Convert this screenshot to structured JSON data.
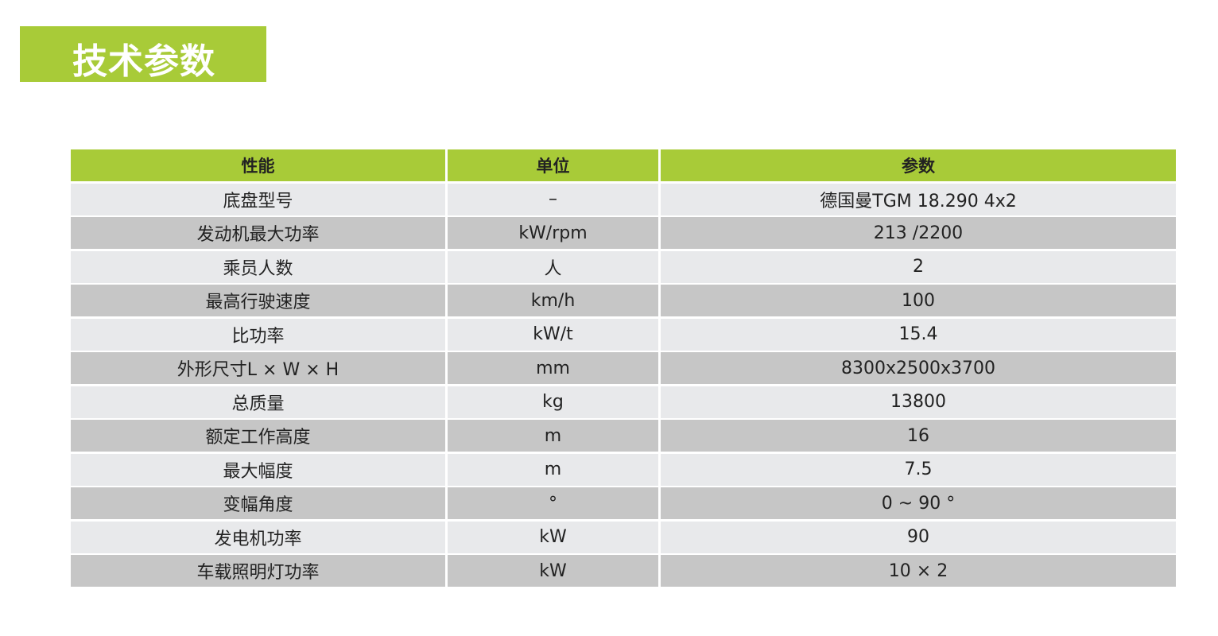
{
  "title": "技术参数",
  "colors": {
    "accent": "#a8cb38",
    "row_light": "#e8e9eb",
    "row_dark": "#c6c6c6"
  },
  "table": {
    "headers": [
      "性能",
      "单位",
      "参数"
    ],
    "rows": [
      [
        "底盘型号",
        "–",
        "德国曼TGM 18.290 4x2"
      ],
      [
        "发动机最大功率",
        "kW/rpm",
        "213 /2200"
      ],
      [
        "乘员人数",
        "人",
        "2"
      ],
      [
        "最高行驶速度",
        "km/h",
        "100"
      ],
      [
        "比功率",
        "kW/t",
        "15.4"
      ],
      [
        "外形尺寸L × W × H",
        "mm",
        "8300x2500x3700"
      ],
      [
        "总质量",
        "kg",
        "13800"
      ],
      [
        "额定工作高度",
        "m",
        "16"
      ],
      [
        "最大幅度",
        "m",
        "7.5"
      ],
      [
        "变幅角度",
        "°",
        "0 ~ 90  °"
      ],
      [
        "发电机功率",
        "kW",
        "90"
      ],
      [
        "车载照明灯功率",
        "kW",
        "10 × 2"
      ]
    ]
  }
}
